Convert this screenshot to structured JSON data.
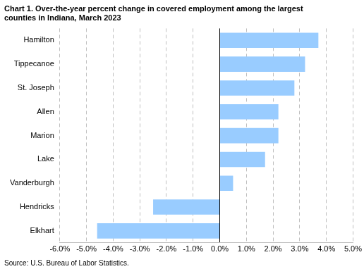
{
  "chart_data": {
    "type": "bar",
    "orientation": "horizontal",
    "title": [
      "Chart 1. Over-the-year percent change in covered employment among the largest",
      "counties in Indiana, March 2023"
    ],
    "source": "Source: U.S. Bureau of Labor Statistics.",
    "categories": [
      "Hamilton",
      "Tippecanoe",
      "St. Joseph",
      "Allen",
      "Marion",
      "Lake",
      "Vanderburgh",
      "Hendricks",
      "Elkhart"
    ],
    "values": [
      3.7,
      3.2,
      2.8,
      2.2,
      2.2,
      1.7,
      0.5,
      -2.5,
      -4.6
    ],
    "color": "#99ccff",
    "xlim": [
      -6,
      5
    ],
    "xticks": [
      {
        "value": -6,
        "label": "-6.0%"
      },
      {
        "value": -5,
        "label": "-5.0%"
      },
      {
        "value": -4,
        "label": "-4.0%"
      },
      {
        "value": -3,
        "label": "-3.0%"
      },
      {
        "value": -2,
        "label": "-2.0%"
      },
      {
        "value": -1,
        "label": "-1.0%"
      },
      {
        "value": 0,
        "label": "0.0%"
      },
      {
        "value": 1,
        "label": "1.0%"
      },
      {
        "value": 2,
        "label": "2.0%"
      },
      {
        "value": 3,
        "label": "3.0%"
      },
      {
        "value": 4,
        "label": "4.0%"
      },
      {
        "value": 5,
        "label": "5.0%"
      }
    ],
    "grid": true
  }
}
